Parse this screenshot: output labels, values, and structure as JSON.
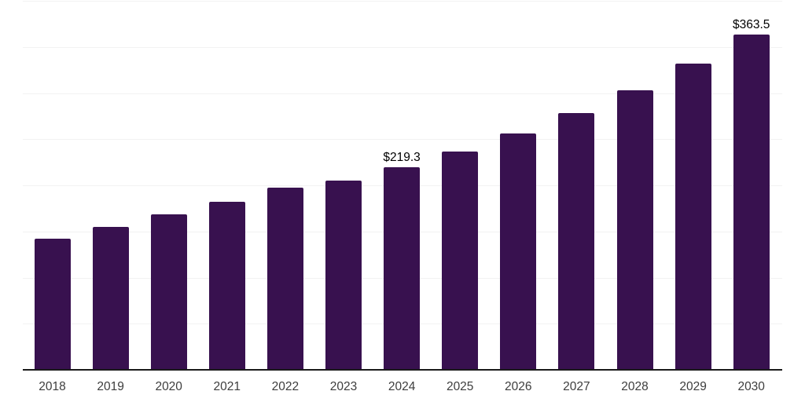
{
  "chart_data": {
    "type": "bar",
    "title": "",
    "xlabel": "",
    "ylabel": "",
    "categories": [
      "2018",
      "2019",
      "2020",
      "2021",
      "2022",
      "2023",
      "2024",
      "2025",
      "2026",
      "2027",
      "2028",
      "2029",
      "2030"
    ],
    "values": [
      142.3,
      155.1,
      168.6,
      182.2,
      197.1,
      205.1,
      219.3,
      236.5,
      256.0,
      278.1,
      302.7,
      331.5,
      363.5
    ],
    "data_labels": [
      {
        "category": "2024",
        "text": "$219.3"
      },
      {
        "category": "2030",
        "text": "$363.5"
      }
    ],
    "value_prefix": "$",
    "ylim": [
      0,
      400
    ],
    "gridline_interval": 50,
    "grid": "horizontal",
    "y_axis_tick_labels": "hidden",
    "legend": "none",
    "colors": {
      "background": "#ffffff",
      "bar": "#38114f",
      "gridline": "#f2f2f2",
      "axis_line": "#1a1a1a",
      "tick_label": "#3d3d3d",
      "data_label": "#000000"
    }
  }
}
